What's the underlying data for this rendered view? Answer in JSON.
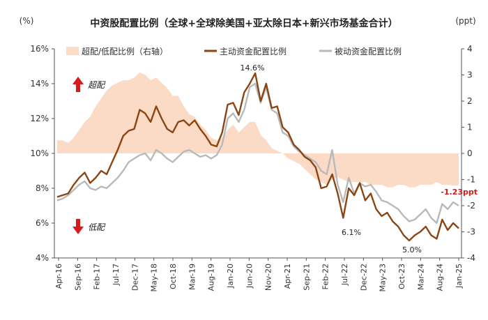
{
  "chart_data": {
    "type": "line",
    "title": "中资股配置比例（全球+全球除美国+亚太除日本+新兴市场基金合计）",
    "ylabel_left": "(%)",
    "ylabel_right": "(ppt)",
    "ylim_left": [
      4,
      16
    ],
    "ylim_right": [
      -4,
      4
    ],
    "yticks_left": [
      "4%",
      "6%",
      "8%",
      "10%",
      "12%",
      "14%",
      "16%"
    ],
    "yticks_right": [
      "-4",
      "-3",
      "-2",
      "-1",
      "0",
      "1",
      "2",
      "3",
      "4"
    ],
    "xticks": [
      "Apr-16",
      "Sep-16",
      "Feb-17",
      "Jul-17",
      "Dec-17",
      "May-18",
      "Oct-18",
      "Mar-19",
      "Aug-19",
      "Jan-20",
      "Jun-20",
      "Nov-20",
      "Apr-21",
      "Sep-21",
      "Feb-22",
      "Jul-22",
      "Dec-22",
      "May-23",
      "Oct-23",
      "Mar-24",
      "Aug-24",
      "Jan-25"
    ],
    "legend": [
      "超配/低配比例（右轴）",
      "主动资金配置比例",
      "被动资金配置比例"
    ],
    "legend_position": "top",
    "annotations": {
      "overweight": "超配",
      "underweight": "低配",
      "peak": "14.6%",
      "low_2022": "6.1%",
      "low_2024": "5.0%",
      "latest_gap": "-1.23ppt"
    },
    "colors": {
      "active": "#8B4513",
      "passive": "#b9b9b9",
      "area": "#fbdac6",
      "arrow": "#d7191c",
      "latest_label": "#d7191c"
    },
    "series": [
      {
        "name": "主动资金配置比例",
        "values": [
          7.5,
          7.6,
          7.7,
          8.2,
          8.6,
          8.9,
          8.3,
          8.6,
          9.0,
          8.8,
          9.5,
          10.2,
          11.0,
          11.3,
          11.4,
          12.5,
          12.3,
          11.8,
          12.7,
          12.0,
          11.4,
          11.2,
          11.8,
          11.9,
          11.6,
          11.9,
          11.4,
          11.0,
          10.5,
          10.4,
          11.2,
          12.8,
          12.9,
          12.2,
          13.5,
          14.0,
          14.6,
          13.0,
          14.0,
          12.6,
          12.7,
          11.5,
          11.2,
          10.5,
          10.2,
          9.8,
          9.6,
          9.2,
          8.0,
          8.1,
          8.8,
          7.7,
          6.3,
          8.0,
          7.6,
          8.3,
          7.3,
          7.7,
          6.8,
          6.4,
          6.6,
          6.1,
          5.8,
          5.3,
          5.0,
          5.3,
          5.5,
          5.8,
          5.3,
          5.1,
          6.2,
          5.6,
          6.0,
          5.7
        ]
      },
      {
        "name": "被动资金配置比例",
        "values": [
          7.3,
          7.4,
          7.6,
          7.9,
          8.2,
          8.4,
          8.0,
          7.9,
          8.1,
          8.0,
          8.3,
          8.6,
          9.0,
          9.5,
          9.7,
          9.9,
          10.0,
          9.6,
          10.2,
          10.0,
          9.7,
          9.5,
          9.8,
          10.1,
          10.2,
          10.0,
          9.8,
          9.9,
          9.7,
          9.9,
          10.5,
          12.0,
          12.3,
          11.8,
          12.5,
          13.8,
          14.0,
          12.9,
          13.8,
          12.5,
          12.3,
          11.2,
          11.0,
          10.4,
          10.1,
          9.9,
          9.7,
          9.5,
          9.0,
          8.8,
          10.2,
          8.2,
          7.2,
          8.6,
          7.7,
          8.3,
          8.1,
          8.2,
          7.8,
          7.3,
          7.2,
          7.0,
          6.8,
          6.4,
          6.1,
          6.2,
          6.5,
          6.8,
          6.3,
          6.0,
          7.1,
          6.8,
          7.2,
          7.0
        ]
      },
      {
        "name": "超配/低配比例（右轴）",
        "values": [
          0.5,
          0.5,
          0.4,
          0.6,
          0.9,
          1.2,
          1.4,
          1.8,
          2.1,
          2.4,
          2.6,
          2.7,
          2.8,
          2.8,
          2.9,
          3.1,
          3.0,
          2.8,
          2.9,
          2.7,
          2.5,
          2.2,
          2.2,
          1.8,
          1.5,
          1.4,
          1.1,
          0.9,
          0.6,
          0.5,
          0.6,
          0.9,
          1.1,
          0.8,
          1.0,
          1.2,
          1.2,
          0.7,
          0.5,
          0.2,
          0.1,
          0.0,
          -0.2,
          -0.3,
          -0.4,
          -0.6,
          -0.8,
          -1.0,
          -1.1,
          -1.2,
          -1.0,
          -0.9,
          -1.0,
          -1.1,
          -1.1,
          -1.1,
          -1.1,
          -1.2,
          -1.2,
          -1.2,
          -1.3,
          -1.3,
          -1.2,
          -1.2,
          -1.3,
          -1.3,
          -1.2,
          -1.2,
          -1.2,
          -1.1,
          -1.2,
          -1.2,
          -1.23,
          -1.23
        ]
      }
    ]
  }
}
